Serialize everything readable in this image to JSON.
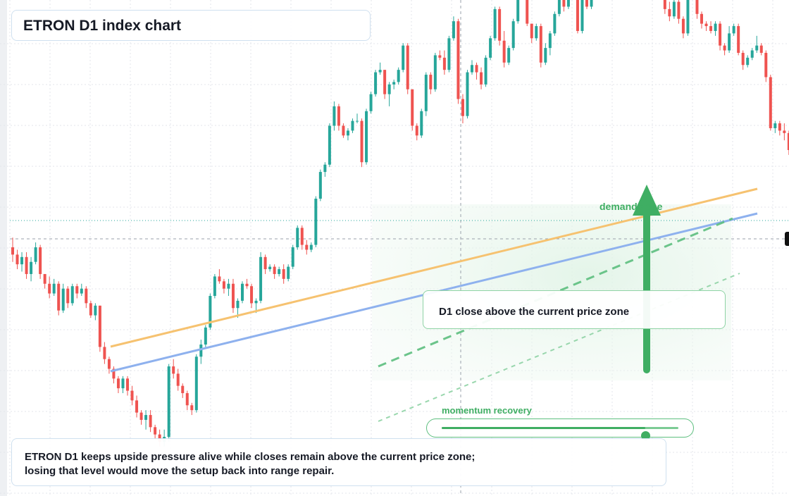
{
  "title": "ETRON D1 index chart",
  "callout": "D1 close above the current price zone",
  "zone_label": "demand zone",
  "momentum": {
    "label": "momentum recovery",
    "level": 0.86
  },
  "note": {
    "line1": "ETRON D1 keeps upside pressure alive while closes remain above the current price zone;",
    "line2": "losing that level would move the setup back into range repair."
  },
  "colors": {
    "up": "#26a69a",
    "down": "#ef5350",
    "accent": "#3fae63",
    "orange_line": "#f6c270",
    "blue_line": "#8eb1ee",
    "grid": "#e3e6eb"
  },
  "icons": {
    "zone_arrow": "up-arrow-icon",
    "price_marker": "price-tag-icon"
  },
  "chart_data": {
    "type": "candlestick",
    "title": "ETRON D1 index chart",
    "timeframe": "D1",
    "price_scale": "relative (no axis labels shown)",
    "candles": [
      [
        60.0,
        62.0,
        57.0,
        58.5
      ],
      [
        58.5,
        59.5,
        55.5,
        56.5
      ],
      [
        56.5,
        59.0,
        55.0,
        58.0
      ],
      [
        58.0,
        59.0,
        53.5,
        54.5
      ],
      [
        54.5,
        58.0,
        53.0,
        57.0
      ],
      [
        57.0,
        61.0,
        56.5,
        60.0
      ],
      [
        60.0,
        60.5,
        53.5,
        54.5
      ],
      [
        54.5,
        54.5,
        51.5,
        52.5
      ],
      [
        52.5,
        54.0,
        49.5,
        50.5
      ],
      [
        50.5,
        53.5,
        50.0,
        52.5
      ],
      [
        52.5,
        53.0,
        46.0,
        47.0
      ],
      [
        47.0,
        52.5,
        46.5,
        51.5
      ],
      [
        51.5,
        52.0,
        47.5,
        48.5
      ],
      [
        48.5,
        52.5,
        48.0,
        52.0
      ],
      [
        52.0,
        52.5,
        49.5,
        50.5
      ],
      [
        50.5,
        52.5,
        50.0,
        51.5
      ],
      [
        51.5,
        52.0,
        47.5,
        48.5
      ],
      [
        48.5,
        49.0,
        45.5,
        46.0
      ],
      [
        46.0,
        48.5,
        45.0,
        48.0
      ],
      [
        48.0,
        48.0,
        38.5,
        39.5
      ],
      [
        39.5,
        40.5,
        36.0,
        37.0
      ],
      [
        37.0,
        37.5,
        34.0,
        35.0
      ],
      [
        35.0,
        35.5,
        32.0,
        33.0
      ],
      [
        33.0,
        33.5,
        30.0,
        31.0
      ],
      [
        31.0,
        33.5,
        30.0,
        33.0
      ],
      [
        33.0,
        33.5,
        29.5,
        30.5
      ],
      [
        30.5,
        31.5,
        27.5,
        28.5
      ],
      [
        28.5,
        29.5,
        25.0,
        26.0
      ],
      [
        26.0,
        26.5,
        23.5,
        24.5
      ],
      [
        24.5,
        26.5,
        22.5,
        25.5
      ],
      [
        25.5,
        26.5,
        22.0,
        23.0
      ],
      [
        23.0,
        23.5,
        20.5,
        21.5
      ],
      [
        21.5,
        22.5,
        19.0,
        20.0
      ],
      [
        20.0,
        22.5,
        19.0,
        21.0
      ],
      [
        21.0,
        36.0,
        20.0,
        35.5
      ],
      [
        35.5,
        37.0,
        33.0,
        34.0
      ],
      [
        34.0,
        35.0,
        30.5,
        31.5
      ],
      [
        31.5,
        32.0,
        29.0,
        30.0
      ],
      [
        30.0,
        30.5,
        26.5,
        27.5
      ],
      [
        27.5,
        28.0,
        25.5,
        26.5
      ],
      [
        26.5,
        38.0,
        26.0,
        37.5
      ],
      [
        37.5,
        41.0,
        36.0,
        40.0
      ],
      [
        40.0,
        44.0,
        39.5,
        43.5
      ],
      [
        43.5,
        50.5,
        43.0,
        50.0
      ],
      [
        50.0,
        54.5,
        49.5,
        54.0
      ],
      [
        54.0,
        55.5,
        52.5,
        53.0
      ],
      [
        53.0,
        53.5,
        50.5,
        51.5
      ],
      [
        51.5,
        53.5,
        50.0,
        52.5
      ],
      [
        52.5,
        53.5,
        46.5,
        47.5
      ],
      [
        47.5,
        49.5,
        45.5,
        49.0
      ],
      [
        49.0,
        53.0,
        48.5,
        52.5
      ],
      [
        52.5,
        53.5,
        51.5,
        52.0
      ],
      [
        52.0,
        52.5,
        47.5,
        48.5
      ],
      [
        48.5,
        49.5,
        46.5,
        49.0
      ],
      [
        49.0,
        59.0,
        48.5,
        58.0
      ],
      [
        58.0,
        58.5,
        54.5,
        55.5
      ],
      [
        55.5,
        56.5,
        55.0,
        56.0
      ],
      [
        56.0,
        56.5,
        53.5,
        54.5
      ],
      [
        54.5,
        56.0,
        54.0,
        55.5
      ],
      [
        55.5,
        56.5,
        52.5,
        53.5
      ],
      [
        53.5,
        56.5,
        53.0,
        56.0
      ],
      [
        56.0,
        60.5,
        55.5,
        60.0
      ],
      [
        60.0,
        64.5,
        59.5,
        64.0
      ],
      [
        64.0,
        64.5,
        59.5,
        60.5
      ],
      [
        60.5,
        61.5,
        58.5,
        59.5
      ],
      [
        59.5,
        61.0,
        59.0,
        60.5
      ],
      [
        60.5,
        70.5,
        60.0,
        70.0
      ],
      [
        70.0,
        76.0,
        69.5,
        75.5
      ],
      [
        75.5,
        77.5,
        74.5,
        77.0
      ],
      [
        77.0,
        85.5,
        76.5,
        85.0
      ],
      [
        85.0,
        90.0,
        84.0,
        89.0
      ],
      [
        89.0,
        89.5,
        84.0,
        85.0
      ],
      [
        85.0,
        85.5,
        82.5,
        83.0
      ],
      [
        83.0,
        84.5,
        82.0,
        84.0
      ],
      [
        84.0,
        86.5,
        83.5,
        86.0
      ],
      [
        86.0,
        87.5,
        85.5,
        86.0
      ],
      [
        86.0,
        86.5,
        76.5,
        77.5
      ],
      [
        77.5,
        88.5,
        77.0,
        88.0
      ],
      [
        88.0,
        92.0,
        87.5,
        91.5
      ],
      [
        91.5,
        96.5,
        91.0,
        96.0
      ],
      [
        96.0,
        98.0,
        95.5,
        96.5
      ],
      [
        96.5,
        96.5,
        90.5,
        91.5
      ],
      [
        91.5,
        94.0,
        89.0,
        93.5
      ],
      [
        93.5,
        94.5,
        92.5,
        94.0
      ],
      [
        94.0,
        97.0,
        93.5,
        96.5
      ],
      [
        96.5,
        102.0,
        96.0,
        101.5
      ],
      [
        101.5,
        102.0,
        91.5,
        92.5
      ],
      [
        92.5,
        92.5,
        84.0,
        85.0
      ],
      [
        85.0,
        85.5,
        82.0,
        83.0
      ],
      [
        83.0,
        88.5,
        82.5,
        88.0
      ],
      [
        88.0,
        96.0,
        87.0,
        95.5
      ],
      [
        95.5,
        96.0,
        91.5,
        92.5
      ],
      [
        92.5,
        100.0,
        92.0,
        99.5
      ],
      [
        99.5,
        100.5,
        98.5,
        99.0
      ],
      [
        99.0,
        100.5,
        95.5,
        96.5
      ],
      [
        96.5,
        103.5,
        96.0,
        103.0
      ],
      [
        103.0,
        107.5,
        102.5,
        106.5
      ],
      [
        106.5,
        107.0,
        89.5,
        90.5
      ],
      [
        90.5,
        91.5,
        85.5,
        87.0
      ],
      [
        87.0,
        96.5,
        86.5,
        96.0
      ],
      [
        96.0,
        98.5,
        95.5,
        97.5
      ],
      [
        97.5,
        98.0,
        94.5,
        96.0
      ],
      [
        96.0,
        97.0,
        92.5,
        93.5
      ],
      [
        93.5,
        99.5,
        93.0,
        99.0
      ],
      [
        99.0,
        103.5,
        98.5,
        103.0
      ],
      [
        103.0,
        109.5,
        102.5,
        109.0
      ],
      [
        109.0,
        109.5,
        101.5,
        102.5
      ],
      [
        102.5,
        104.5,
        97.0,
        98.0
      ],
      [
        98.0,
        101.5,
        97.5,
        101.0
      ],
      [
        101.0,
        107.0,
        100.5,
        106.5
      ],
      [
        106.5,
        112.5,
        106.0,
        112.0
      ],
      [
        112.0,
        114.0,
        111.5,
        113.5
      ],
      [
        113.5,
        115.0,
        105.5,
        106.0
      ],
      [
        106.0,
        106.0,
        102.0,
        103.0
      ],
      [
        103.0,
        106.0,
        102.5,
        105.5
      ],
      [
        105.5,
        106.0,
        97.0,
        98.0
      ],
      [
        98.0,
        102.0,
        97.5,
        101.0
      ],
      [
        101.0,
        104.5,
        99.5,
        104.0
      ],
      [
        104.0,
        108.5,
        103.5,
        108.0
      ],
      [
        108.0,
        112.5,
        107.5,
        112.0
      ],
      [
        112.0,
        113.0,
        108.5,
        109.5
      ],
      [
        109.5,
        113.5,
        109.0,
        113.0
      ],
      [
        113.0,
        114.0,
        111.0,
        112.0
      ],
      [
        112.0,
        113.0,
        104.0,
        104.5
      ],
      [
        104.5,
        112.5,
        104.0,
        111.5
      ],
      [
        111.5,
        113.5,
        109.0,
        109.5
      ],
      [
        109.5,
        114.5,
        109.0,
        114.0
      ],
      [
        114.0,
        119.5,
        113.5,
        119.0
      ],
      [
        119.0,
        120.5,
        117.5,
        118.0
      ],
      [
        118.0,
        121.0,
        116.5,
        119.5
      ],
      [
        119.5,
        119.5,
        117.5,
        118.0
      ],
      [
        118.0,
        122.5,
        117.5,
        122.0
      ],
      [
        122.0,
        124.5,
        121.5,
        123.5
      ],
      [
        123.5,
        124.0,
        112.5,
        113.5
      ],
      [
        113.5,
        121.5,
        113.0,
        121.0
      ],
      [
        121.0,
        126.5,
        120.5,
        125.5
      ],
      [
        125.5,
        127.0,
        123.5,
        124.0
      ],
      [
        124.0,
        129.0,
        123.5,
        128.0
      ],
      [
        128.0,
        130.5,
        125.0,
        126.0
      ],
      [
        126.0,
        126.5,
        120.0,
        121.0
      ],
      [
        121.0,
        121.5,
        117.0,
        118.0
      ],
      [
        118.0,
        119.0,
        112.5,
        114.0
      ],
      [
        114.0,
        114.5,
        108.0,
        109.0
      ],
      [
        109.0,
        110.5,
        106.5,
        107.5
      ],
      [
        107.5,
        111.0,
        107.0,
        110.5
      ],
      [
        110.5,
        111.0,
        106.0,
        107.0
      ],
      [
        107.0,
        107.5,
        103.0,
        104.0
      ],
      [
        104.0,
        112.5,
        103.5,
        112.0
      ],
      [
        112.0,
        113.5,
        111.5,
        112.5
      ],
      [
        112.5,
        113.0,
        107.0,
        108.0
      ],
      [
        108.0,
        108.5,
        105.0,
        106.0
      ],
      [
        106.0,
        106.5,
        104.5,
        105.5
      ],
      [
        105.5,
        106.5,
        104.0,
        104.5
      ],
      [
        104.5,
        106.5,
        103.5,
        106.0
      ],
      [
        106.0,
        106.5,
        100.5,
        101.5
      ],
      [
        101.5,
        102.0,
        99.5,
        100.5
      ],
      [
        100.5,
        105.5,
        100.0,
        104.0
      ],
      [
        104.0,
        106.0,
        103.5,
        105.5
      ],
      [
        105.5,
        106.0,
        99.5,
        100.0
      ],
      [
        100.0,
        100.5,
        96.5,
        97.5
      ],
      [
        97.5,
        99.5,
        97.0,
        99.0
      ],
      [
        99.0,
        101.0,
        98.5,
        100.5
      ],
      [
        100.5,
        103.5,
        100.0,
        101.5
      ],
      [
        101.5,
        102.0,
        99.5,
        100.0
      ],
      [
        100.0,
        100.5,
        94.0,
        95.0
      ],
      [
        95.0,
        95.5,
        84.0,
        84.5
      ],
      [
        84.5,
        86.0,
        83.5,
        85.5
      ],
      [
        85.5,
        86.0,
        83.0,
        84.0
      ],
      [
        84.0,
        85.5,
        82.0,
        83.5
      ],
      [
        83.5,
        84.0,
        79.0,
        80.0
      ],
      [
        80.0,
        80.5,
        76.0,
        77.5
      ],
      [
        77.5,
        78.0,
        75.5,
        76.0
      ],
      [
        76.0,
        79.5,
        75.5,
        79.0
      ]
    ],
    "annotations": [
      "demand zone",
      "D1 close above the current price zone",
      "momentum recovery"
    ],
    "trendlines": [
      "rising orange trendline",
      "rising blue trendline",
      "dashed green channel lines"
    ],
    "grid": true,
    "legend": "none"
  }
}
